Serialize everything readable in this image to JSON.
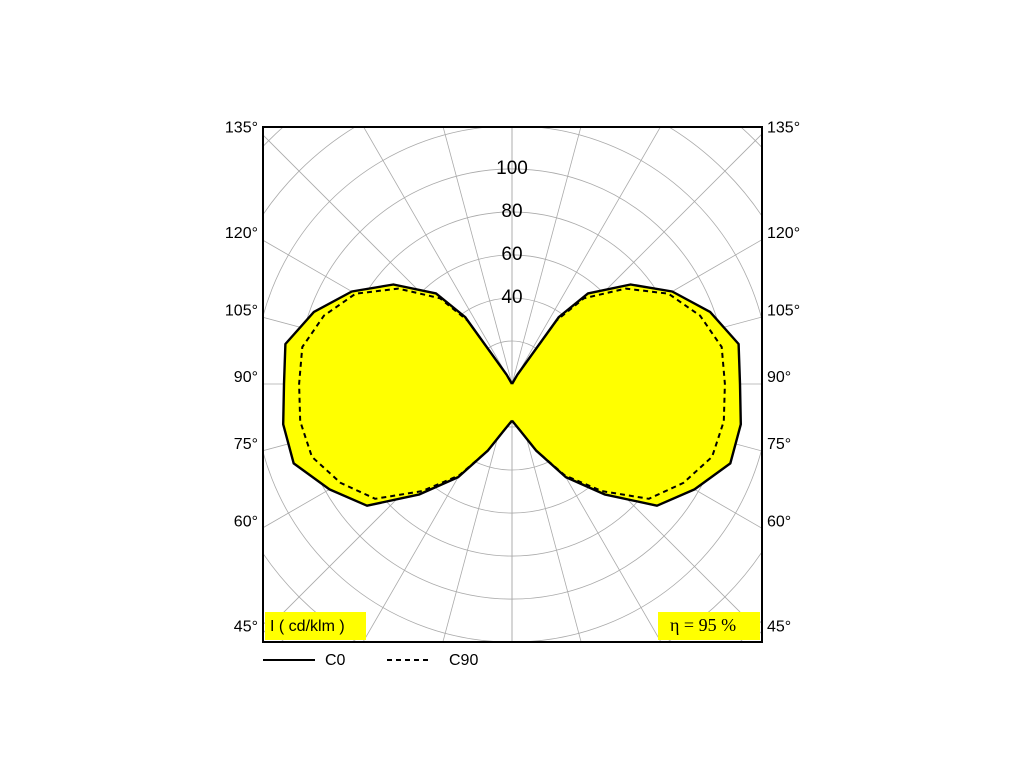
{
  "chart_data": {
    "type": "polar",
    "x": [
      0,
      10,
      20,
      30,
      40,
      50,
      60,
      70,
      80,
      90,
      100,
      110,
      120,
      130,
      140,
      145,
      150,
      160,
      170,
      180
    ],
    "series": [
      {
        "name": "C0",
        "color": "#000000",
        "dash": false,
        "values": [
          17,
          22,
          33,
          50,
          67,
          88,
          98,
          108,
          108,
          106,
          107,
          98,
          86,
          72,
          55,
          38,
          5,
          0,
          0,
          0
        ]
      },
      {
        "name": "C90",
        "color": "#000000",
        "dash": true,
        "values": [
          17,
          22,
          33,
          49,
          65,
          83,
          92,
          99,
          100,
          99,
          99,
          93,
          84,
          69,
          52,
          36,
          5,
          0,
          0,
          0
        ]
      }
    ],
    "fill_color": "#ffff00",
    "rlim": [
      0,
      116
    ],
    "rticks": [
      40,
      60,
      80,
      100
    ],
    "angle_ticks": [
      {
        "value": 135,
        "label": "135°"
      },
      {
        "value": 120,
        "label": "120°"
      },
      {
        "value": 105,
        "label": "105°"
      },
      {
        "value": 90,
        "label": "90°"
      },
      {
        "value": 75,
        "label": "75°"
      },
      {
        "value": 60,
        "label": "60°"
      },
      {
        "value": 45,
        "label": "45°"
      }
    ],
    "unit_label": "I ( cd/klm )",
    "efficiency_label": "η = 95 %"
  }
}
